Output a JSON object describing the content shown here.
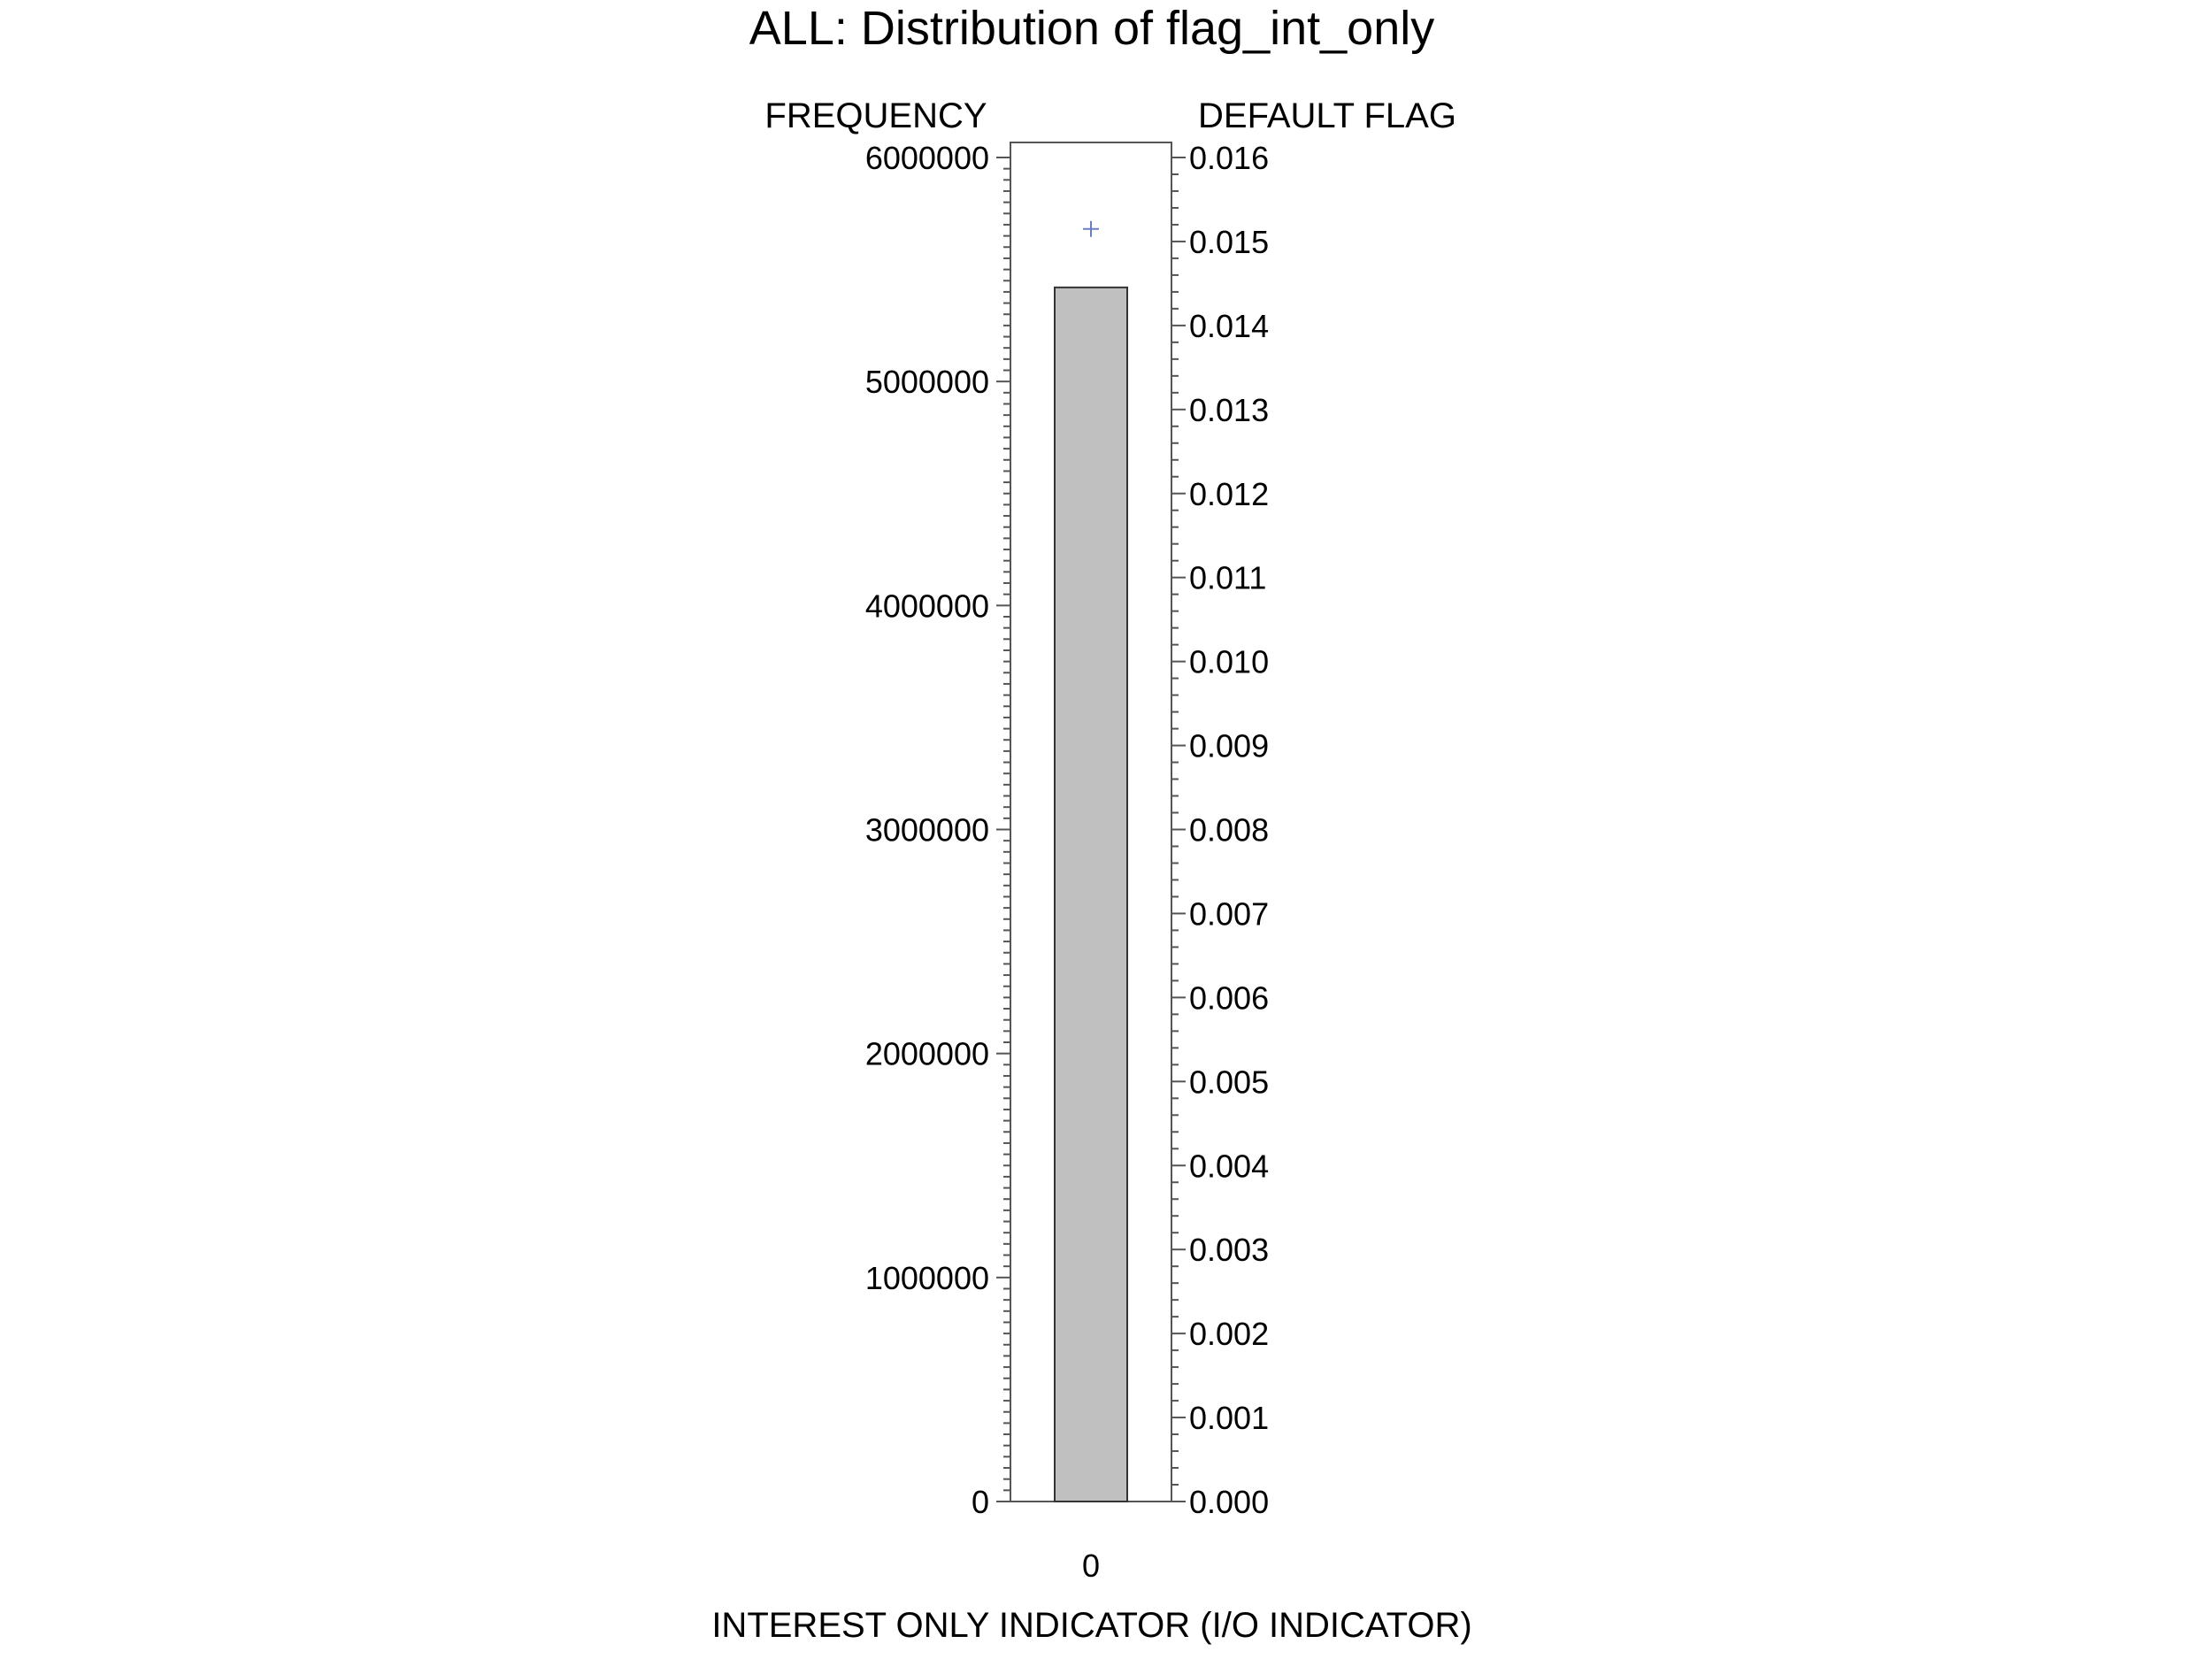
{
  "chart_data": {
    "type": "bar",
    "title": "ALL: Distribution of flag_int_only",
    "xlabel": "INTEREST ONLY INDICATOR (I/O INDICATOR)",
    "ylabel": "FREQUENCY",
    "y2label": "DEFAULT FLAG",
    "categories": [
      "0"
    ],
    "series": [
      {
        "values": [
          5420000
        ],
        "axis": "left",
        "mark": "bar",
        "color": "#c0c0c0"
      },
      {
        "values": [
          0.01515
        ],
        "axis": "right",
        "mark": "plus-marker",
        "color": "#6b7fc0"
      }
    ],
    "ylim": [
      0,
      6000000
    ],
    "y2lim": [
      0,
      0.016
    ],
    "y_ticks": [
      "0",
      "1000000",
      "2000000",
      "3000000",
      "4000000",
      "5000000",
      "6000000"
    ],
    "y2_ticks": [
      "0.000",
      "0.001",
      "0.002",
      "0.003",
      "0.004",
      "0.005",
      "0.006",
      "0.007",
      "0.008",
      "0.009",
      "0.010",
      "0.011",
      "0.012",
      "0.013",
      "0.014",
      "0.015",
      "0.016"
    ],
    "grid": false,
    "legend": "none"
  }
}
